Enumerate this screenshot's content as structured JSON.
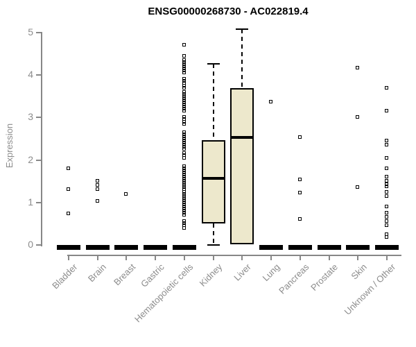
{
  "chart_data": {
    "type": "boxplot",
    "title": "ENSG00000268730 - AC022819.4",
    "xlabel": "",
    "ylabel": "Expression",
    "ylim": [
      0,
      5
    ],
    "yticks": [
      "0",
      "1",
      "2",
      "3",
      "4",
      "5"
    ],
    "grid": false,
    "legend": false,
    "categories": [
      "Bladder",
      "Brain",
      "Breast",
      "Gastric",
      "Hematopoietic cells",
      "Kidney",
      "Liver",
      "Lung",
      "Pancreas",
      "Prostate",
      "Skin",
      "Unknown / Other"
    ],
    "boxes": [
      {
        "category": "Bladder",
        "flat": true,
        "median": 0,
        "q1": 0,
        "q3": 0,
        "whisker_low": 0,
        "whisker_high": 0,
        "outliers": [
          1.8,
          1.3,
          0.73
        ]
      },
      {
        "category": "Brain",
        "flat": true,
        "median": 0,
        "q1": 0,
        "q3": 0,
        "whisker_low": 0,
        "whisker_high": 0,
        "outliers": [
          1.5,
          1.4,
          1.3,
          1.03
        ]
      },
      {
        "category": "Breast",
        "flat": true,
        "median": 0,
        "q1": 0,
        "q3": 0,
        "whisker_low": 0,
        "whisker_high": 0,
        "outliers": [
          1.2
        ]
      },
      {
        "category": "Gastric",
        "flat": true,
        "median": 0,
        "q1": 0,
        "q3": 0,
        "whisker_low": 0,
        "whisker_high": 0,
        "outliers": []
      },
      {
        "category": "Hematopoietic cells",
        "flat": true,
        "median": 0,
        "q1": 0,
        "q3": 0,
        "whisker_low": 0,
        "whisker_high": 0,
        "outliers": [
          4.7,
          4.45,
          4.35,
          4.3,
          4.25,
          4.2,
          4.15,
          4.1,
          4.05,
          3.9,
          3.85,
          3.8,
          3.75,
          3.7,
          3.6,
          3.55,
          3.5,
          3.45,
          3.4,
          3.35,
          3.3,
          3.25,
          3.2,
          3.15,
          3.0,
          2.95,
          2.9,
          2.85,
          2.65,
          2.6,
          2.55,
          2.5,
          2.45,
          2.4,
          2.35,
          2.3,
          2.25,
          2.15,
          2.1,
          2.05,
          1.85,
          1.8,
          1.75,
          1.7,
          1.65,
          1.6,
          1.55,
          1.5,
          1.45,
          1.4,
          1.35,
          1.3,
          1.25,
          1.2,
          1.15,
          1.1,
          1.05,
          1.0,
          0.95,
          0.9,
          0.85,
          0.8,
          0.75,
          0.7,
          0.55,
          0.5,
          0.45,
          0.4
        ]
      },
      {
        "category": "Kidney",
        "flat": false,
        "median": 1.57,
        "q1": 0.5,
        "q3": 2.47,
        "whisker_low": 0,
        "whisker_high": 4.27,
        "outliers": []
      },
      {
        "category": "Liver",
        "flat": false,
        "median": 2.53,
        "q1": 0.02,
        "q3": 3.69,
        "whisker_low": 0.02,
        "whisker_high": 5.08,
        "outliers": []
      },
      {
        "category": "Lung",
        "flat": true,
        "median": 0,
        "q1": 0,
        "q3": 0,
        "whisker_low": 0,
        "whisker_high": 0,
        "outliers": [
          3.37
        ]
      },
      {
        "category": "Pancreas",
        "flat": true,
        "median": 0,
        "q1": 0,
        "q3": 0,
        "whisker_low": 0,
        "whisker_high": 0,
        "outliers": [
          2.53,
          1.54,
          1.23,
          0.6
        ]
      },
      {
        "category": "Prostate",
        "flat": true,
        "median": 0,
        "q1": 0,
        "q3": 0,
        "whisker_low": 0,
        "whisker_high": 0,
        "outliers": []
      },
      {
        "category": "Skin",
        "flat": true,
        "median": 0,
        "q1": 0,
        "q3": 0,
        "whisker_low": 0,
        "whisker_high": 0,
        "outliers": [
          4.17,
          3.0,
          1.35
        ]
      },
      {
        "category": "Unknown / Other",
        "flat": true,
        "median": 0,
        "q1": 0,
        "q3": 0,
        "whisker_low": 0,
        "whisker_high": 0,
        "outliers": [
          3.7,
          3.15,
          2.45,
          2.35,
          2.05,
          1.8,
          1.6,
          1.5,
          1.42,
          1.38,
          1.25,
          1.15,
          0.9,
          0.75,
          0.65,
          0.55,
          0.45,
          0.25,
          0.18
        ]
      }
    ],
    "colors": {
      "box_fill": "#EDE8CC",
      "box_border": "#000000",
      "median": "#000000",
      "whisker": "#000000",
      "outlier": "#000000",
      "axis": "#878787",
      "tick_label": "#8C8C8C",
      "title": "#000000",
      "background": "#FFFFFF"
    }
  }
}
